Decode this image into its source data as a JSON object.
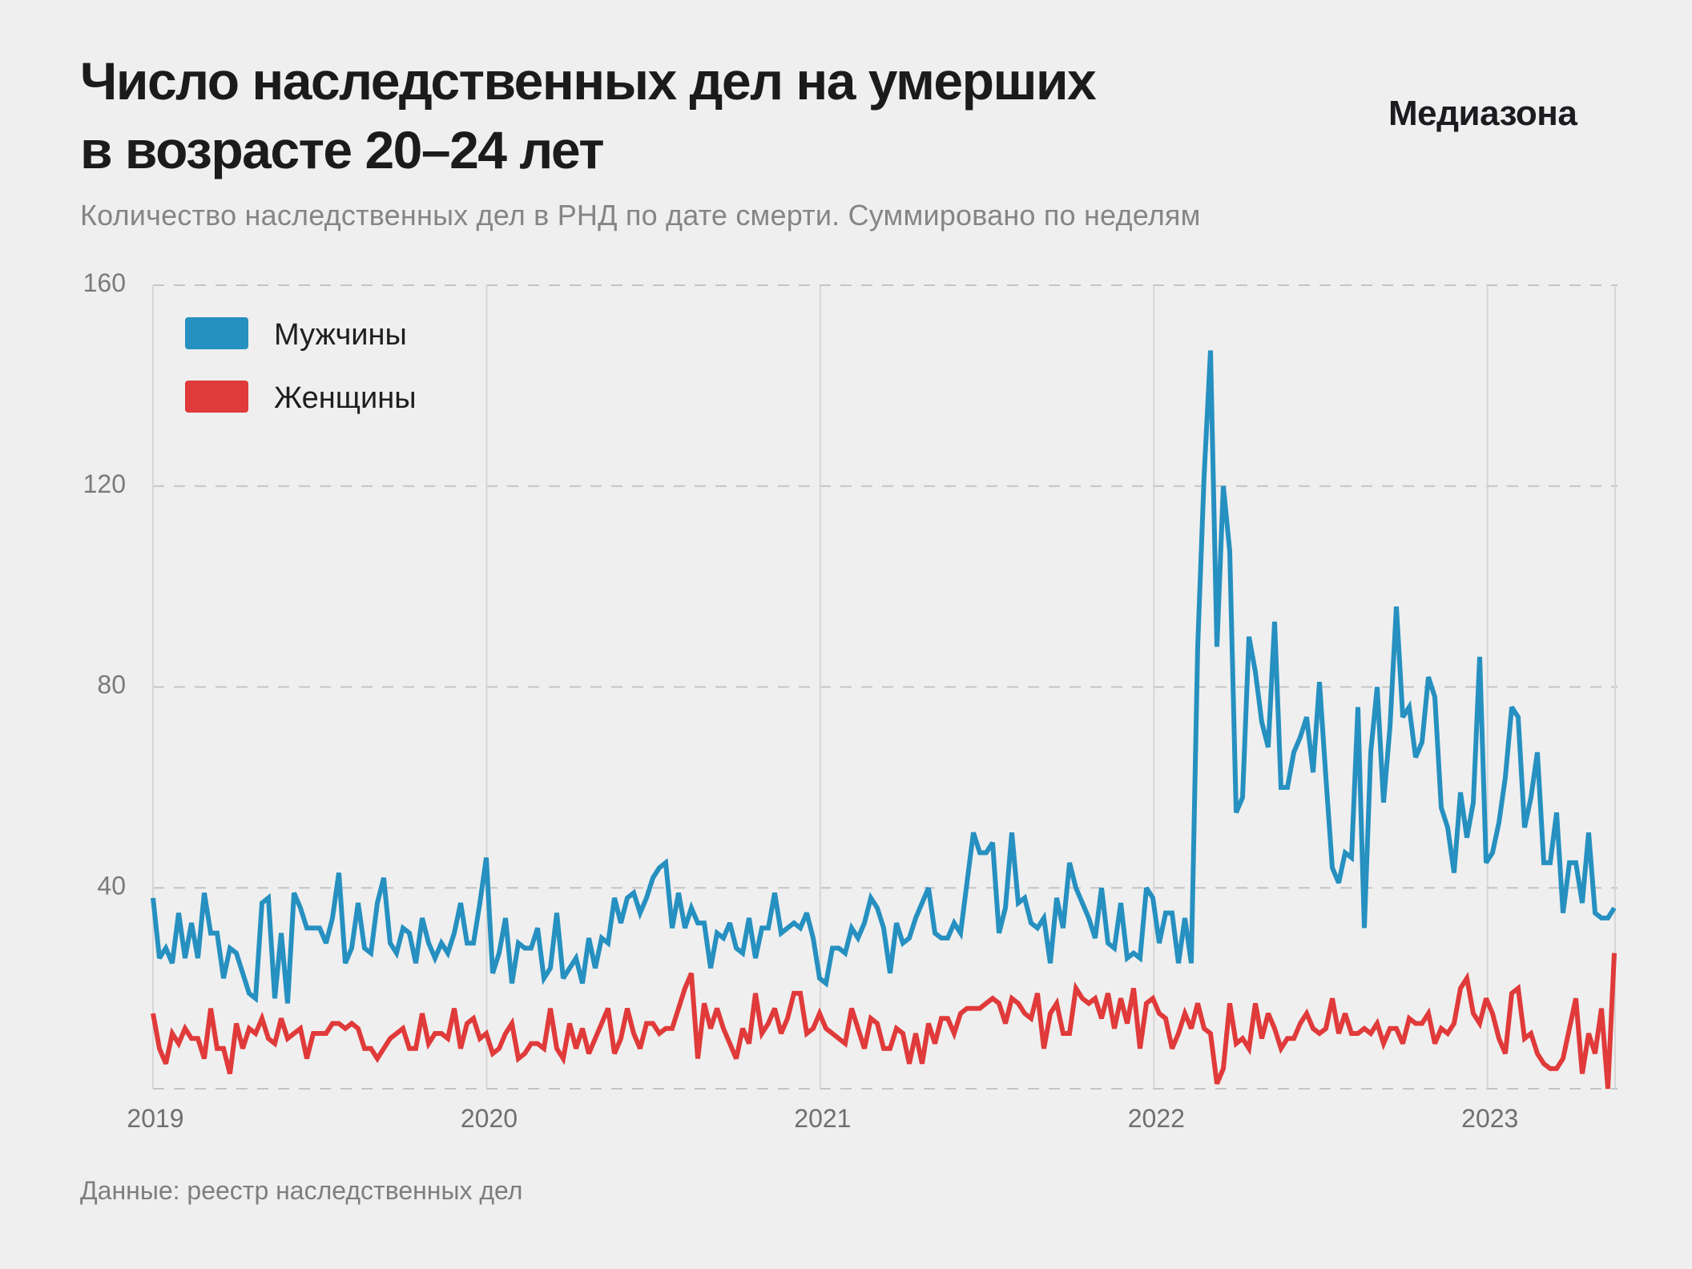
{
  "header": {
    "title_line1": "Число наследственных дел на умерших",
    "title_line2": "в возрасте 20–24 лет",
    "logo": "Медиазона",
    "subtitle": "Количество наследственных дел в РНД по дате смерти. Суммировано по неделям"
  },
  "footer": {
    "source": "Данные: реестр наследственных дел"
  },
  "colors": {
    "men": "#2690c0",
    "women": "#e03a3a",
    "background": "#efefef"
  },
  "chart_data": {
    "type": "line",
    "title": "Число наследственных дел на умерших в возрасте 20–24 лет",
    "subtitle": "Количество наследственных дел в РНД по дате смерти. Суммировано по неделям",
    "xlabel": "",
    "ylabel": "",
    "x_start": "2019-01",
    "x_step": "week",
    "x_range": [
      2019.0,
      2023.38
    ],
    "xticks": [
      "2019",
      "2020",
      "2021",
      "2022",
      "2023"
    ],
    "ylim": [
      0,
      160
    ],
    "yticks": [
      40,
      80,
      120,
      160
    ],
    "ytick_labels": [
      "40",
      "80",
      "120",
      "160"
    ],
    "grid": "horizontal dashed + vertical year lines",
    "legend_position": "top-left",
    "series": [
      {
        "name": "Мужчины",
        "color": "#2690c0",
        "values": [
          38,
          26,
          28,
          25,
          35,
          26,
          33,
          26,
          39,
          31,
          31,
          22,
          28,
          27,
          23,
          19,
          18,
          37,
          38,
          18,
          31,
          17,
          39,
          36,
          32,
          32,
          32,
          29,
          34,
          43,
          25,
          28,
          37,
          28,
          27,
          37,
          42,
          29,
          27,
          32,
          31,
          25,
          34,
          29,
          26,
          29,
          27,
          31,
          37,
          29,
          29,
          37,
          46,
          23,
          27,
          34,
          21,
          29,
          28,
          28,
          32,
          22,
          24,
          35,
          22,
          24,
          26,
          21,
          30,
          24,
          30,
          29,
          38,
          33,
          38,
          39,
          35,
          38,
          42,
          44,
          45,
          32,
          39,
          32,
          36,
          33,
          33,
          24,
          31,
          30,
          33,
          28,
          27,
          34,
          26,
          32,
          32,
          39,
          31,
          32,
          33,
          32,
          35,
          30,
          22,
          21,
          28,
          28,
          27,
          32,
          30,
          33,
          38,
          36,
          32,
          23,
          33,
          29,
          30,
          34,
          37,
          40,
          31,
          30,
          30,
          33,
          31,
          41,
          51,
          47,
          47,
          49,
          31,
          36,
          51,
          37,
          38,
          33,
          32,
          34,
          25,
          38,
          32,
          45,
          40,
          37,
          34,
          30,
          40,
          29,
          28,
          37,
          26,
          27,
          26,
          40,
          38,
          29,
          35,
          35,
          25,
          34,
          25,
          88,
          122,
          147,
          88,
          120,
          107,
          55,
          58,
          90,
          83,
          73,
          68,
          93,
          60,
          60,
          67,
          70,
          74,
          63,
          81,
          62,
          44,
          41,
          47,
          46,
          76,
          32,
          67,
          80,
          57,
          72,
          96,
          74,
          76,
          66,
          69,
          82,
          78,
          56,
          52,
          43,
          59,
          50,
          57,
          86,
          45,
          47,
          53,
          62,
          76,
          74,
          52,
          58,
          67,
          45,
          45,
          55,
          35,
          45,
          45,
          37,
          51,
          35,
          34,
          34,
          36
        ]
      },
      {
        "name": "Женщины",
        "color": "#e03a3a",
        "values": [
          15,
          8,
          5,
          11,
          9,
          12,
          10,
          10,
          6,
          16,
          8,
          8,
          3,
          13,
          8,
          12,
          11,
          14,
          10,
          9,
          14,
          10,
          11,
          12,
          6,
          11,
          11,
          11,
          13,
          13,
          12,
          13,
          12,
          8,
          8,
          6,
          8,
          10,
          11,
          12,
          8,
          8,
          15,
          9,
          11,
          11,
          10,
          16,
          8,
          13,
          14,
          10,
          11,
          7,
          8,
          11,
          13,
          6,
          7,
          9,
          9,
          8,
          16,
          8,
          6,
          13,
          8,
          12,
          7,
          10,
          13,
          16,
          7,
          10,
          16,
          11,
          8,
          13,
          13,
          11,
          12,
          12,
          16,
          20,
          23,
          6,
          17,
          12,
          16,
          12,
          9,
          6,
          12,
          9,
          19,
          11,
          13,
          16,
          11,
          14,
          19,
          19,
          11,
          12,
          15,
          12,
          11,
          10,
          9,
          16,
          12,
          8,
          14,
          13,
          8,
          8,
          12,
          11,
          5,
          11,
          5,
          13,
          9,
          14,
          14,
          11,
          15,
          16,
          16,
          16,
          17,
          18,
          17,
          13,
          18,
          17,
          15,
          14,
          19,
          8,
          15,
          17,
          11,
          11,
          20,
          18,
          17,
          18,
          14,
          19,
          12,
          18,
          13,
          20,
          8,
          17,
          18,
          15,
          14,
          8,
          11,
          15,
          12,
          17,
          12,
          11,
          1,
          4,
          17,
          9,
          10,
          8,
          17,
          10,
          15,
          12,
          8,
          10,
          10,
          13,
          15,
          12,
          11,
          12,
          18,
          11,
          15,
          11,
          11,
          12,
          11,
          13,
          9,
          12,
          12,
          9,
          14,
          13,
          13,
          15,
          9,
          12,
          11,
          13,
          20,
          22,
          15,
          13,
          18,
          15,
          10,
          7,
          19,
          20,
          10,
          11,
          7,
          5,
          4,
          4,
          6,
          12,
          18,
          3,
          11,
          7,
          16,
          0,
          27
        ]
      }
    ]
  }
}
